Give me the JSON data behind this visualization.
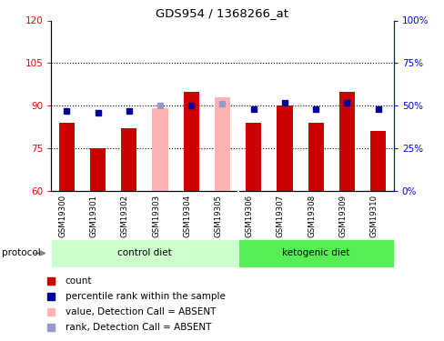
{
  "title": "GDS954 / 1368266_at",
  "samples": [
    "GSM19300",
    "GSM19301",
    "GSM19302",
    "GSM19303",
    "GSM19304",
    "GSM19305",
    "GSM19306",
    "GSM19307",
    "GSM19308",
    "GSM19309",
    "GSM19310"
  ],
  "count_values": [
    84,
    75,
    82,
    null,
    95,
    null,
    84,
    90,
    84,
    95,
    81
  ],
  "rank_pct": [
    47,
    46,
    47,
    null,
    50,
    null,
    48,
    52,
    48,
    52,
    48
  ],
  "absent_value_values": [
    null,
    null,
    null,
    89,
    null,
    93,
    null,
    null,
    null,
    null,
    null
  ],
  "absent_rank_pct": [
    null,
    null,
    null,
    50,
    null,
    51,
    null,
    null,
    null,
    null,
    null
  ],
  "ylim_left": [
    60,
    120
  ],
  "ylim_right": [
    0,
    100
  ],
  "yticks_left": [
    60,
    75,
    90,
    105,
    120
  ],
  "yticks_right": [
    0,
    25,
    50,
    75,
    100
  ],
  "ytick_labels_right": [
    "0%",
    "25%",
    "50%",
    "75%",
    "100%"
  ],
  "hlines": [
    75,
    90,
    105
  ],
  "bar_color_dark_red": "#CC0000",
  "bar_color_pink": "#FFB3B3",
  "rank_color_dark_blue": "#000099",
  "rank_color_light_blue": "#9999CC",
  "bg_xlabel": "#CCCCCC",
  "bg_control": "#CCFFCC",
  "bg_ketogenic": "#55EE55",
  "control_count": 6,
  "keto_count": 5
}
